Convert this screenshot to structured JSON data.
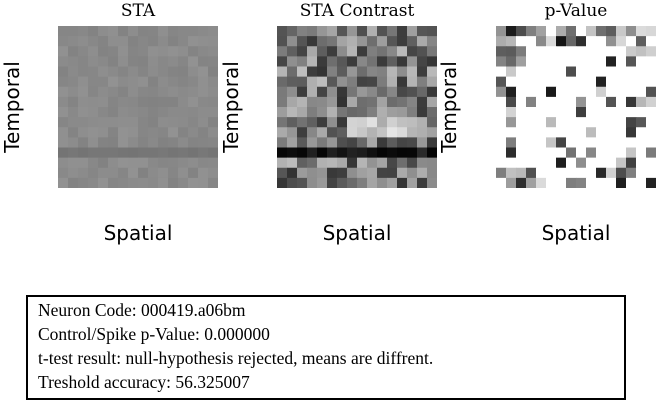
{
  "chart_data": [
    {
      "type": "heatmap",
      "title": "STA",
      "xlabel": "Spatial",
      "ylabel": "Temporal",
      "rows": 16,
      "cols": 16,
      "intensity_range": [
        0,
        255
      ],
      "colormap": "gray",
      "pattern": "nearly uniform mid-gray with a slightly darker band near row 12",
      "base": 138,
      "spread": 8,
      "seed": 11,
      "bands": [
        {
          "row": 12,
          "value": 118
        }
      ]
    },
    {
      "type": "heatmap",
      "title": "STA Contrast",
      "xlabel": "Spatial",
      "ylabel": "Temporal",
      "rows": 16,
      "cols": 16,
      "intensity_range": [
        0,
        255
      ],
      "colormap": "gray",
      "pattern": "noisy gray, very dark band at row 12, bright patches at rows 9-10",
      "base": 120,
      "spread": 70,
      "seed": 23,
      "bands": [
        {
          "row": 12,
          "value": 25
        }
      ]
    },
    {
      "type": "heatmap",
      "title": "p-Value",
      "xlabel": "Spatial",
      "ylabel": "Temporal",
      "rows": 16,
      "cols": 16,
      "intensity_range": [
        0,
        255
      ],
      "colormap": "gray",
      "pattern": "mostly white with scattered gray/black cells, denser at borders",
      "base": 255,
      "spread": 0,
      "seed": 37,
      "sparse": true
    }
  ],
  "info": {
    "neuron_code": "Neuron Code: 000419.a06bm",
    "pvalue": "Control/Spike p-Value: 0.000000",
    "ttest": "t-test result: null-hypothesis rejected, means are diffrent.",
    "threshold": "Treshold accuracy: 56.325007"
  }
}
